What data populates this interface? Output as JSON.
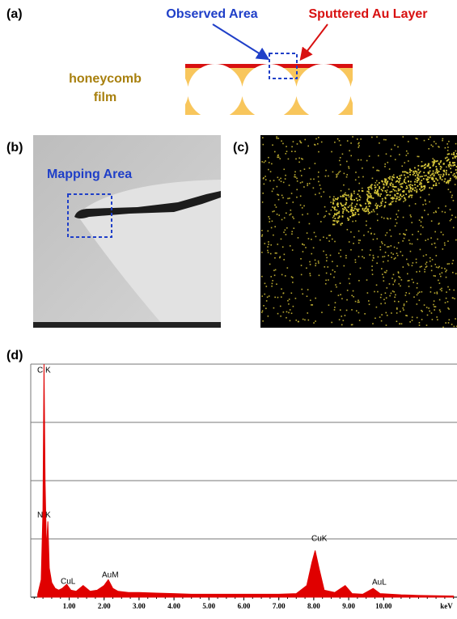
{
  "panels": {
    "a": {
      "label": "(a)",
      "observed_area": "Observed Area",
      "au_layer": "Sputtered Au Layer",
      "film_label": [
        "honeycomb",
        "film"
      ]
    },
    "b": {
      "label": "(b)",
      "mapping_area": "Mapping Area"
    },
    "c": {
      "label": "(c)"
    },
    "d": {
      "label": "(d)"
    }
  },
  "chart_data": {
    "type": "area",
    "color": "#e00000",
    "x": [
      0.1,
      0.2,
      0.25,
      0.28,
      0.31,
      0.35,
      0.39,
      0.43,
      0.5,
      0.6,
      0.7,
      0.8,
      0.93,
      1.05,
      1.2,
      1.4,
      1.6,
      1.8,
      2.0,
      2.12,
      2.25,
      2.4,
      2.7,
      3.0,
      3.5,
      4.0,
      4.5,
      5.0,
      5.5,
      6.0,
      6.5,
      7.0,
      7.5,
      7.8,
      7.95,
      8.04,
      8.15,
      8.3,
      8.6,
      8.9,
      9.1,
      9.4,
      9.7,
      9.9,
      10.5,
      11.0,
      12.0
    ],
    "values": [
      0.05,
      0.3,
      1.5,
      4.0,
      2.0,
      0.8,
      1.3,
      0.5,
      0.25,
      0.15,
      0.12,
      0.15,
      0.22,
      0.12,
      0.1,
      0.2,
      0.1,
      0.12,
      0.2,
      0.3,
      0.15,
      0.1,
      0.08,
      0.08,
      0.07,
      0.06,
      0.05,
      0.05,
      0.05,
      0.05,
      0.05,
      0.05,
      0.06,
      0.2,
      0.6,
      0.8,
      0.5,
      0.12,
      0.08,
      0.2,
      0.06,
      0.05,
      0.15,
      0.06,
      0.04,
      0.03,
      0.02
    ],
    "xlim": [
      -0.1,
      12.1
    ],
    "ylim": [
      0,
      4
    ],
    "yticks": [
      0,
      1,
      2,
      3,
      4
    ],
    "xticks": [
      {
        "value": 1,
        "label": "1.00"
      },
      {
        "value": 2,
        "label": "2.00"
      },
      {
        "value": 3,
        "label": "3.00"
      },
      {
        "value": 4,
        "label": "4.00"
      },
      {
        "value": 5,
        "label": "5.00"
      },
      {
        "value": 6,
        "label": "6.00"
      },
      {
        "value": 7,
        "label": "7.00"
      },
      {
        "value": 8,
        "label": "8.00"
      },
      {
        "value": 9,
        "label": "9.00"
      },
      {
        "value": 10,
        "label": "10.00"
      }
    ],
    "x_label": "keV",
    "grid": true,
    "annotations": [
      "C K",
      "N K",
      "CuL",
      "AuM",
      "CuK",
      "AuL"
    ]
  }
}
